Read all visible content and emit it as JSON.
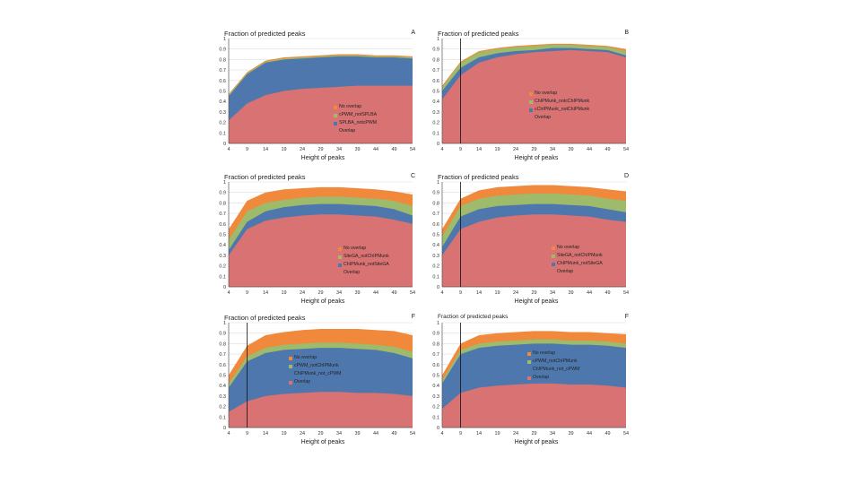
{
  "chart_data": [
    {
      "type": "area",
      "panel_letter": "A",
      "title": "Fraction of predicted peaks",
      "xlabel": "Height of peaks",
      "ylim": [
        0,
        1
      ],
      "x_ticks": [
        "4",
        "9",
        "14",
        "19",
        "24",
        "29",
        "34",
        "39",
        "44",
        "49",
        "54"
      ],
      "vline": null,
      "series": [
        {
          "name": "No overlap",
          "values": [
            0.47,
            0.68,
            0.79,
            0.82,
            0.83,
            0.84,
            0.85,
            0.85,
            0.84,
            0.84,
            0.83
          ]
        },
        {
          "name": "cPWM_notSPLBA",
          "values": [
            0.46,
            0.67,
            0.78,
            0.81,
            0.82,
            0.83,
            0.84,
            0.84,
            0.83,
            0.83,
            0.82
          ]
        },
        {
          "name": "SPLBA_notcPWM",
          "values": [
            0.45,
            0.66,
            0.77,
            0.8,
            0.81,
            0.82,
            0.83,
            0.83,
            0.82,
            0.82,
            0.81
          ]
        },
        {
          "name": "Overlap",
          "values": [
            0.22,
            0.38,
            0.46,
            0.5,
            0.52,
            0.53,
            0.54,
            0.55,
            0.55,
            0.55,
            0.55
          ]
        }
      ]
    },
    {
      "type": "area",
      "panel_letter": "B",
      "title": "Fraction of predicted peaks",
      "xlabel": "Height of peaks",
      "ylim": [
        0,
        1
      ],
      "x_ticks": [
        "4",
        "9",
        "14",
        "19",
        "24",
        "29",
        "34",
        "39",
        "44",
        "49",
        "54"
      ],
      "vline": 9,
      "series": [
        {
          "name": "No overlap",
          "values": [
            0.55,
            0.78,
            0.88,
            0.91,
            0.93,
            0.94,
            0.95,
            0.95,
            0.94,
            0.93,
            0.9
          ]
        },
        {
          "name": "ChIPMunk_notcChIPMunk",
          "values": [
            0.54,
            0.77,
            0.87,
            0.9,
            0.92,
            0.93,
            0.94,
            0.94,
            0.93,
            0.92,
            0.88
          ]
        },
        {
          "name": "cChIPMunk_notChIPMunk",
          "values": [
            0.5,
            0.72,
            0.82,
            0.86,
            0.88,
            0.89,
            0.91,
            0.91,
            0.9,
            0.89,
            0.84
          ]
        },
        {
          "name": "Overlap",
          "values": [
            0.42,
            0.65,
            0.77,
            0.82,
            0.85,
            0.87,
            0.88,
            0.89,
            0.88,
            0.87,
            0.82
          ]
        }
      ]
    },
    {
      "type": "area",
      "panel_letter": "C",
      "title": "Fraction of predicted peaks",
      "xlabel": "Height of peaks",
      "ylim": [
        0,
        1
      ],
      "x_ticks": [
        "4",
        "9",
        "14",
        "19",
        "24",
        "29",
        "34",
        "39",
        "44",
        "49",
        "54"
      ],
      "vline": null,
      "series": [
        {
          "name": "No overlap",
          "values": [
            0.55,
            0.82,
            0.9,
            0.93,
            0.94,
            0.95,
            0.95,
            0.94,
            0.93,
            0.91,
            0.88
          ]
        },
        {
          "name": "SiteGA_notChIPMunk",
          "values": [
            0.45,
            0.72,
            0.8,
            0.83,
            0.85,
            0.86,
            0.86,
            0.85,
            0.84,
            0.82,
            0.77
          ]
        },
        {
          "name": "ChIPMunk_notSiteGA",
          "values": [
            0.35,
            0.62,
            0.72,
            0.76,
            0.78,
            0.79,
            0.79,
            0.78,
            0.77,
            0.74,
            0.68
          ]
        },
        {
          "name": "Overlap",
          "values": [
            0.3,
            0.55,
            0.63,
            0.66,
            0.68,
            0.69,
            0.69,
            0.68,
            0.67,
            0.64,
            0.6
          ]
        }
      ]
    },
    {
      "type": "area",
      "panel_letter": "D",
      "title": "Fraction of predicted peaks",
      "xlabel": "Height of peaks",
      "ylim": [
        0,
        1
      ],
      "x_ticks": [
        "4",
        "9",
        "14",
        "19",
        "24",
        "29",
        "34",
        "39",
        "44",
        "49",
        "54"
      ],
      "vline": 9,
      "series": [
        {
          "name": "No overlap",
          "values": [
            0.55,
            0.84,
            0.92,
            0.95,
            0.96,
            0.97,
            0.97,
            0.96,
            0.95,
            0.93,
            0.91
          ]
        },
        {
          "name": "SiteGA_notChIPMunk",
          "values": [
            0.48,
            0.77,
            0.84,
            0.87,
            0.88,
            0.89,
            0.89,
            0.88,
            0.87,
            0.84,
            0.82
          ]
        },
        {
          "name": "ChIPMunk_notSiteGA",
          "values": [
            0.38,
            0.67,
            0.74,
            0.77,
            0.78,
            0.79,
            0.79,
            0.78,
            0.77,
            0.74,
            0.71
          ]
        },
        {
          "name": "Overlap",
          "values": [
            0.3,
            0.55,
            0.62,
            0.66,
            0.68,
            0.69,
            0.69,
            0.68,
            0.67,
            0.64,
            0.62
          ]
        }
      ]
    },
    {
      "type": "area",
      "panel_letter": "F",
      "title": "Fraction of predicted peaks",
      "xlabel": "Height of peaks",
      "ylim": [
        0,
        1
      ],
      "x_ticks": [
        "4",
        "9",
        "14",
        "19",
        "24",
        "29",
        "34",
        "39",
        "44",
        "49",
        "54"
      ],
      "vline": 9,
      "series": [
        {
          "name": "No overlap",
          "values": [
            0.5,
            0.78,
            0.88,
            0.91,
            0.93,
            0.94,
            0.94,
            0.94,
            0.93,
            0.92,
            0.88
          ]
        },
        {
          "name": "cPWM_notChIPMunk",
          "values": [
            0.42,
            0.68,
            0.76,
            0.79,
            0.8,
            0.81,
            0.81,
            0.8,
            0.79,
            0.77,
            0.72
          ]
        },
        {
          "name": "ChIPMunk_not_cPWM",
          "values": [
            0.38,
            0.63,
            0.71,
            0.74,
            0.75,
            0.76,
            0.76,
            0.75,
            0.74,
            0.71,
            0.66
          ]
        },
        {
          "name": "Overlap",
          "values": [
            0.15,
            0.25,
            0.3,
            0.32,
            0.33,
            0.34,
            0.34,
            0.33,
            0.33,
            0.32,
            0.3
          ]
        }
      ]
    },
    {
      "type": "area",
      "panel_letter": "F",
      "title": "Fraction of predicted peaks",
      "xlabel": "Height of peaks",
      "ylim": [
        0,
        1
      ],
      "x_ticks": [
        "4",
        "9",
        "14",
        "19",
        "24",
        "29",
        "34",
        "39",
        "44",
        "49",
        "54"
      ],
      "vline": 9,
      "series": [
        {
          "name": "No overlap",
          "values": [
            0.5,
            0.8,
            0.88,
            0.9,
            0.91,
            0.92,
            0.92,
            0.91,
            0.91,
            0.9,
            0.89
          ]
        },
        {
          "name": "cPWM_notChIPMunk",
          "values": [
            0.45,
            0.74,
            0.8,
            0.82,
            0.83,
            0.84,
            0.84,
            0.83,
            0.83,
            0.82,
            0.8
          ]
        },
        {
          "name": "ChIPMunk_not_cPWM",
          "values": [
            0.42,
            0.7,
            0.76,
            0.78,
            0.79,
            0.8,
            0.8,
            0.79,
            0.79,
            0.78,
            0.76
          ]
        },
        {
          "name": "Overlap",
          "values": [
            0.18,
            0.33,
            0.38,
            0.4,
            0.41,
            0.42,
            0.42,
            0.41,
            0.41,
            0.4,
            0.38
          ]
        }
      ]
    }
  ],
  "colors": {
    "No overlap": "#f0893b",
    "second": "#9dbb6a",
    "third": "#4e78ad",
    "Overlap": "#d97272",
    "grid": "#dcdcdc",
    "axis": "#555555"
  }
}
